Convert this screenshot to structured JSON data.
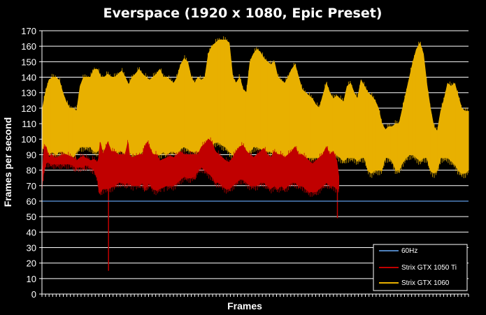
{
  "chart_data": {
    "type": "line",
    "title": "Everspace (1920 x 1080, Epic Preset)",
    "xlabel": "Frames",
    "ylabel": "Frames per second",
    "ylim": [
      0,
      170
    ],
    "yticks": [
      0,
      10,
      20,
      30,
      40,
      50,
      60,
      70,
      80,
      90,
      100,
      110,
      120,
      130,
      140,
      150,
      160,
      170
    ],
    "grid": "horizontal",
    "legend_position": "bottom-right",
    "xticks_count": 120,
    "series": [
      {
        "name": "60Hz",
        "color": "#4F81BD",
        "kind": "reference",
        "x": [
          0,
          100
        ],
        "values": [
          60,
          60
        ]
      },
      {
        "name": "Strix GTX 1050 Ti",
        "color": "#C00000",
        "kind": "band",
        "x": [
          0,
          3,
          6,
          10,
          14,
          18,
          22,
          26,
          30,
          35,
          40,
          45,
          48,
          50,
          55,
          60,
          62,
          67,
          70,
          75,
          80,
          82,
          84,
          88,
          95,
          100,
          105,
          110,
          115,
          120,
          124,
          126,
          130,
          140,
          145,
          148,
          152,
          154,
          160,
          165,
          170,
          180,
          185,
          190,
          195,
          200,
          205,
          210,
          215,
          220,
          222,
          225,
          230,
          235,
          240,
          245,
          250,
          255,
          260,
          265,
          270,
          275,
          280,
          285,
          290,
          295,
          300,
          305,
          310,
          315,
          320,
          325,
          330,
          335,
          340,
          345,
          350,
          355,
          360,
          365,
          370,
          375,
          380,
          385,
          390,
          395,
          400,
          405,
          410,
          415,
          420,
          425,
          428
        ],
        "high": [
          75,
          95,
          95,
          88,
          90,
          88,
          88,
          89,
          90,
          90,
          89,
          88,
          87,
          86,
          88,
          89,
          88,
          87,
          86,
          87,
          85,
          88,
          98,
          90,
          98,
          92,
          92,
          90,
          90,
          90,
          98,
          90,
          88,
          90,
          90,
          95,
          98,
          96,
          90,
          90,
          86,
          88,
          89,
          88,
          90,
          92,
          90,
          90,
          90,
          90,
          90,
          90,
          95,
          97,
          100,
          98,
          92,
          90,
          88,
          86,
          85,
          88,
          92,
          95,
          96,
          92,
          90,
          88,
          90,
          92,
          94,
          90,
          88,
          92,
          90,
          90,
          88,
          90,
          92,
          95,
          90,
          90,
          88,
          86,
          84,
          86,
          88,
          90,
          95,
          90,
          92,
          86,
          76
        ],
        "low": [
          70,
          80,
          85,
          85,
          84,
          84,
          84,
          84,
          84,
          84,
          84,
          83,
          82,
          82,
          82,
          82,
          83,
          83,
          82,
          80,
          75,
          68,
          66,
          68,
          68,
          69,
          70,
          72,
          72,
          71,
          72,
          72,
          70,
          70,
          72,
          68,
          70,
          72,
          68,
          67,
          68,
          70,
          70,
          70,
          72,
          74,
          76,
          75,
          75,
          76,
          78,
          80,
          82,
          80,
          78,
          76,
          72,
          72,
          70,
          68,
          68,
          70,
          72,
          74,
          74,
          72,
          70,
          70,
          70,
          72,
          72,
          70,
          68,
          70,
          68,
          70,
          68,
          70,
          72,
          72,
          70,
          70,
          68,
          66,
          66,
          66,
          68,
          70,
          72,
          70,
          70,
          68,
          68
        ],
        "spikes": [
          {
            "x": 96,
            "value": 15
          },
          {
            "x": 426,
            "value": 49
          }
        ]
      },
      {
        "name": "Strix GTX 1060",
        "color": "#E8B000",
        "kind": "band",
        "x": [
          0,
          5,
          10,
          15,
          20,
          25,
          30,
          35,
          40,
          45,
          50,
          55,
          60,
          65,
          70,
          75,
          80,
          85,
          90,
          95,
          100,
          105,
          110,
          115,
          120,
          125,
          130,
          135,
          140,
          145,
          150,
          155,
          160,
          165,
          170,
          175,
          180,
          185,
          190,
          195,
          200,
          205,
          210,
          215,
          220,
          225,
          230,
          235,
          240,
          245,
          250,
          255,
          260,
          265,
          270,
          275,
          280,
          285,
          290,
          295,
          300,
          305,
          310,
          315,
          320,
          325,
          330,
          335,
          340,
          345,
          350,
          355,
          360,
          365,
          370,
          375,
          380,
          385,
          390,
          395,
          400,
          405,
          410,
          415,
          420,
          425,
          430,
          435,
          440,
          445,
          450,
          455,
          460,
          465,
          470,
          475,
          480,
          485,
          490,
          495,
          500,
          505,
          510,
          515,
          520,
          525,
          530,
          535,
          540,
          545,
          550,
          555,
          560,
          565,
          570,
          575,
          580,
          585,
          590,
          595,
          600,
          605,
          610,
          615
        ],
        "high": [
          118,
          130,
          138,
          140,
          140,
          138,
          130,
          124,
          120,
          120,
          118,
          134,
          140,
          140,
          140,
          145,
          145,
          140,
          140,
          142,
          140,
          140,
          142,
          144,
          140,
          135,
          140,
          142,
          145,
          142,
          140,
          138,
          140,
          142,
          145,
          140,
          140,
          138,
          136,
          140,
          148,
          152,
          150,
          140,
          136,
          140,
          138,
          140,
          155,
          160,
          162,
          164,
          164,
          164,
          162,
          140,
          136,
          140,
          132,
          130,
          150,
          155,
          158,
          156,
          152,
          150,
          148,
          150,
          140,
          138,
          136,
          140,
          145,
          148,
          140,
          132,
          130,
          128,
          126,
          122,
          120,
          128,
          136,
          130,
          126,
          128,
          126,
          124,
          134,
          136,
          130,
          126,
          138,
          134,
          130,
          128,
          125,
          120,
          110,
          106,
          108,
          108,
          110,
          110,
          120,
          130,
          140,
          150,
          158,
          162,
          155,
          135,
          120,
          108,
          105,
          118,
          126,
          136,
          134,
          136,
          128,
          120,
          118,
          118
        ],
        "low": [
          95,
          92,
          90,
          92,
          90,
          92,
          92,
          90,
          88,
          88,
          92,
          95,
          95,
          95,
          95,
          92,
          92,
          95,
          92,
          92,
          92,
          90,
          92,
          92,
          90,
          92,
          90,
          90,
          90,
          92,
          90,
          92,
          90,
          90,
          90,
          92,
          90,
          92,
          92,
          90,
          94,
          95,
          94,
          92,
          92,
          92,
          90,
          92,
          95,
          96,
          98,
          98,
          96,
          95,
          92,
          90,
          92,
          88,
          88,
          90,
          92,
          95,
          95,
          94,
          92,
          92,
          92,
          90,
          90,
          90,
          88,
          88,
          92,
          92,
          90,
          90,
          88,
          88,
          88,
          88,
          88,
          85,
          88,
          88,
          88,
          90,
          88,
          86,
          88,
          88,
          88,
          86,
          88,
          88,
          80,
          78,
          80,
          80,
          80,
          88,
          88,
          86,
          80,
          80,
          85,
          88,
          90,
          90,
          88,
          86,
          88,
          88,
          80,
          78,
          80,
          88,
          88,
          88,
          86,
          84,
          80,
          78,
          78,
          80
        ]
      }
    ]
  }
}
